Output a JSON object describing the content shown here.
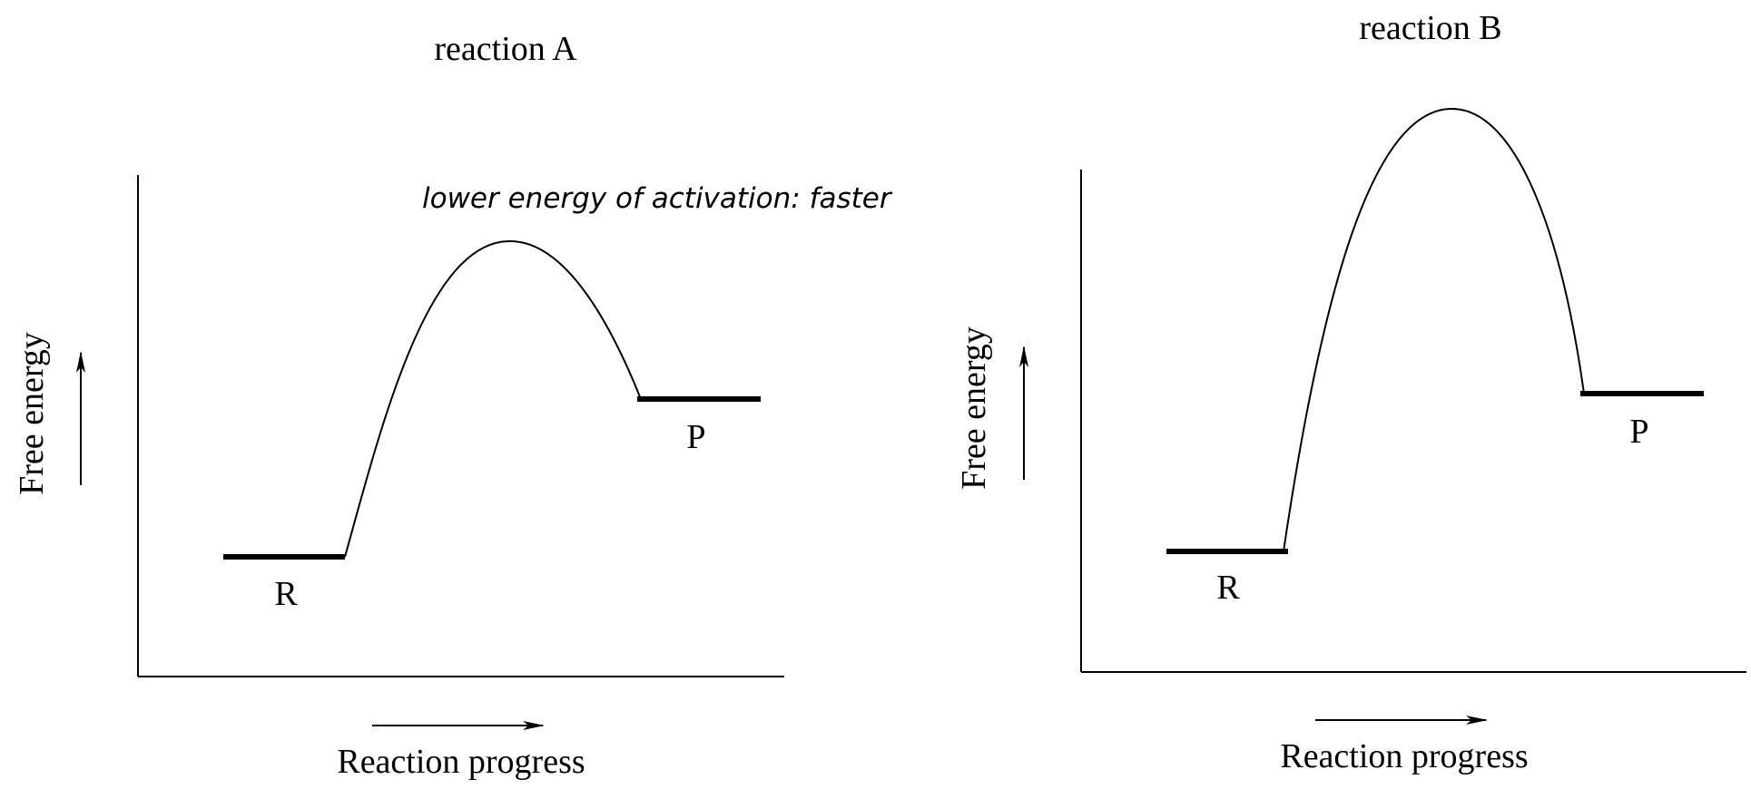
{
  "annotation": "lower energy of activation: faster",
  "panels": [
    {
      "title": "reaction A",
      "y_axis_label": "Free energy",
      "x_axis_label": "Reaction progress",
      "reactant_label": "R",
      "product_label": "P"
    },
    {
      "title": "reaction B",
      "y_axis_label": "Free energy",
      "x_axis_label": "Reaction progress",
      "reactant_label": "R",
      "product_label": "P"
    }
  ]
}
